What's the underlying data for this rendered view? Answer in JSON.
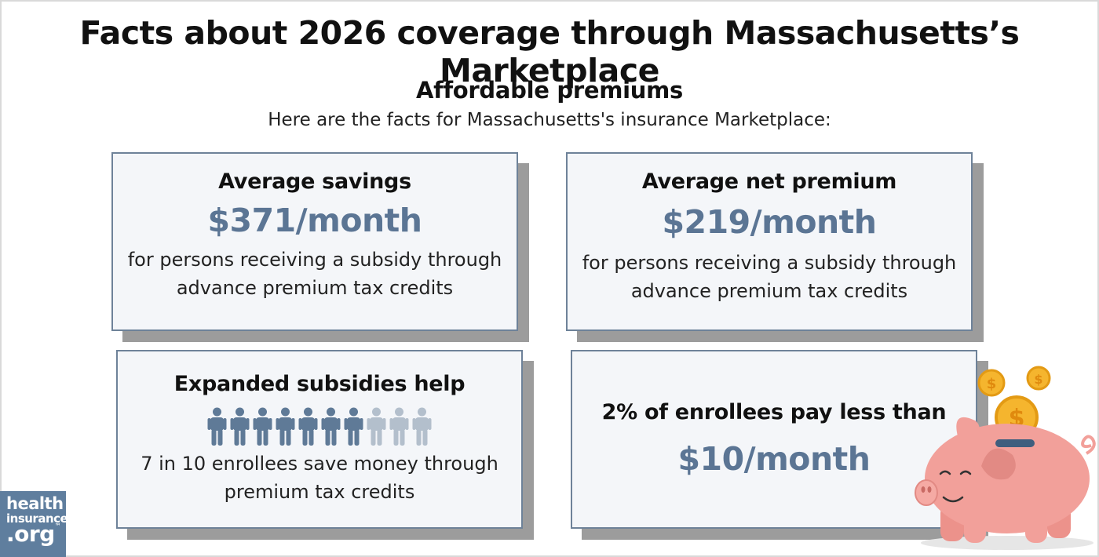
{
  "header": {
    "title": "Facts about 2026 coverage through Massachusetts’s Marketplace",
    "subtitle": "Affordable premiums",
    "intro": "Here are the facts for Massachusetts's insurance Marketplace:"
  },
  "cards": {
    "savings": {
      "heading": "Average savings",
      "value": "$371/month",
      "line1": "for persons receiving a subsidy through",
      "line2": "advance premium tax credits"
    },
    "net_premium": {
      "heading": "Average net premium",
      "value": "$219/month",
      "line1": "for persons receiving a subsidy through",
      "line2": "advance premium tax credits"
    },
    "subsidies": {
      "heading": "Expanded subsidies help",
      "people_total": 10,
      "people_highlighted": 7,
      "line1": "7 in 10 enrollees save money through",
      "line2": "premium tax credits"
    },
    "enrollees": {
      "heading": "2% of enrollees pay less than",
      "value": "$10/month"
    }
  },
  "logo": {
    "line1": "health",
    "line2": "insurance",
    "line3": ".org",
    "tm": "™"
  },
  "colors": {
    "accent": "#5b7594",
    "card_border": "#6e8299",
    "card_bg": "#f4f6f9",
    "shadow": "#9c9c9c",
    "person_dark": "#5f7a97",
    "person_light": "#b3bfcc",
    "logo_bg": "#5f7e9e",
    "pig": "#f2a09a",
    "coin": "#f5b52e"
  },
  "icons": [
    "person-icon",
    "piggy-bank-icon",
    "coin-icon"
  ]
}
